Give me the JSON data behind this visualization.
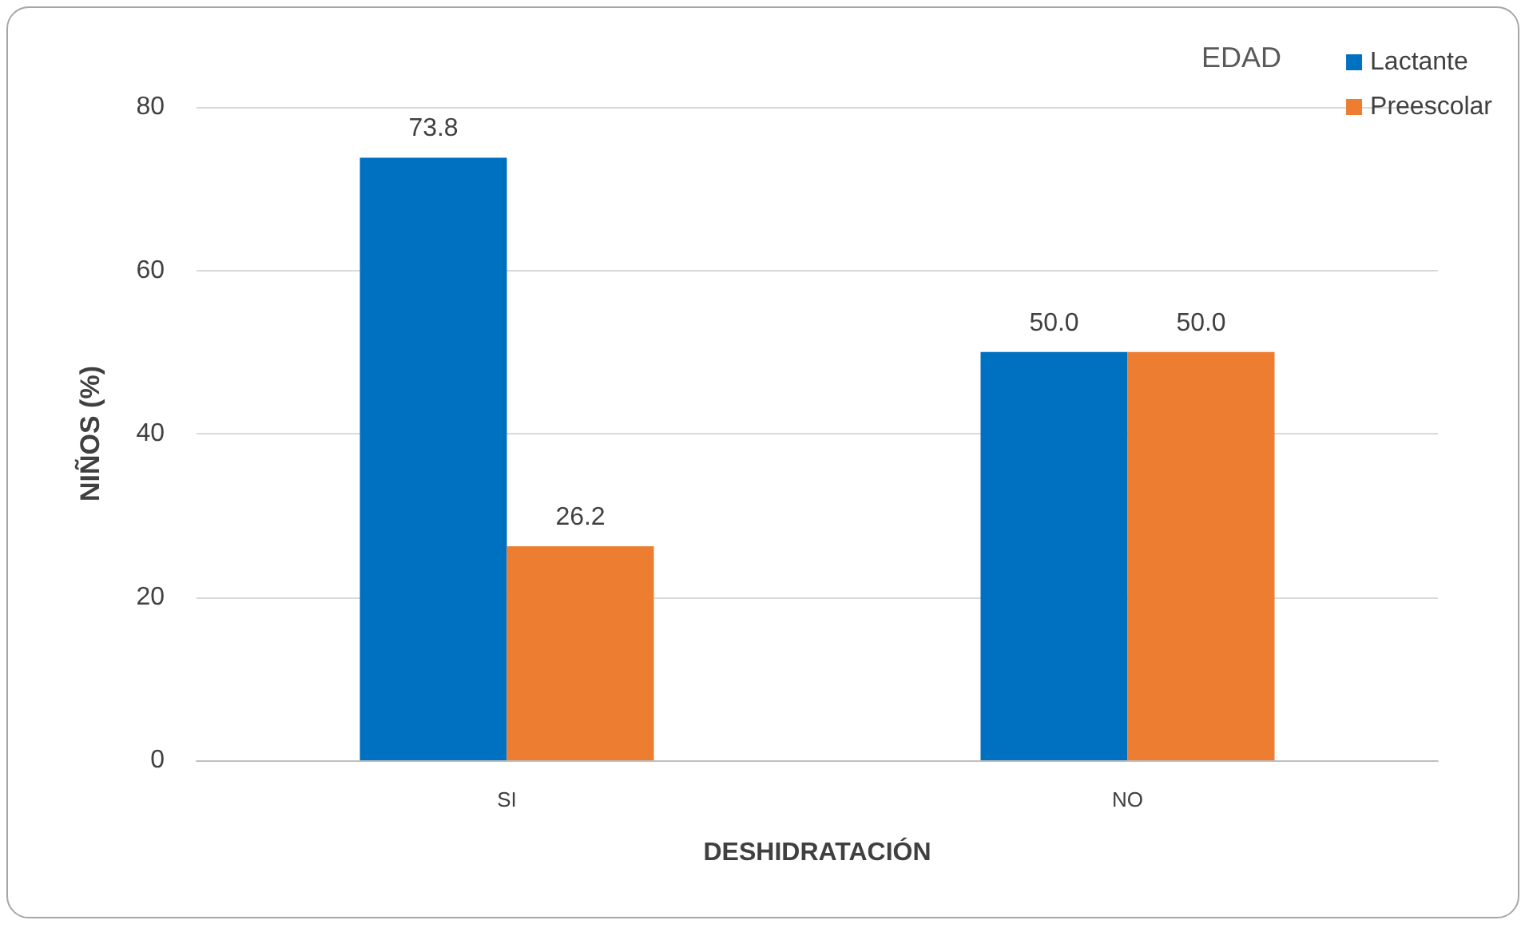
{
  "chart_data": {
    "type": "bar",
    "xlabel": "DESHIDRATACIÓN",
    "ylabel": "NIÑOS (%)",
    "legend_title": "EDAD",
    "categories": [
      "SI",
      "NO"
    ],
    "series": [
      {
        "name": "Lactante",
        "color": "#0070c0",
        "values": [
          73.8,
          50.0
        ],
        "value_labels": [
          "73.8",
          "50.0"
        ]
      },
      {
        "name": "Preescolar",
        "color": "#ed7d31",
        "values": [
          26.2,
          50.0
        ],
        "value_labels": [
          "26.2",
          "50.0"
        ]
      }
    ],
    "ylim": [
      0,
      80
    ],
    "yticks": [
      0,
      20,
      40,
      60,
      80
    ],
    "grid": "y",
    "legend": "top right"
  }
}
